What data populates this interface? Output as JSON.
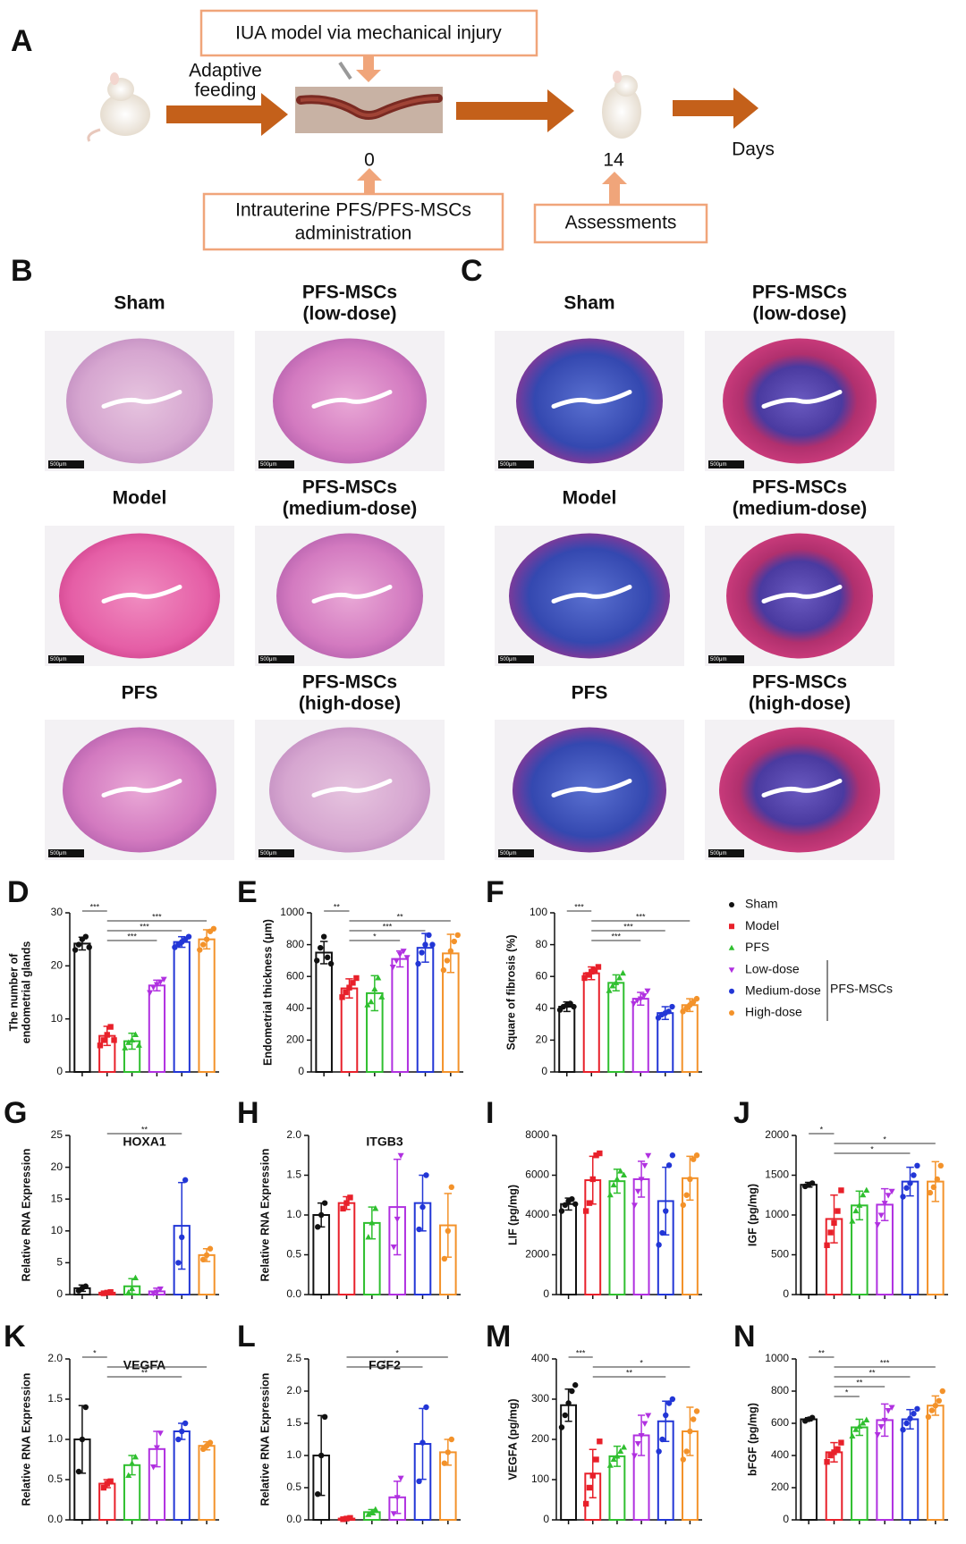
{
  "timeline": {
    "label": "A",
    "top_box": "IUA model via mechanical injury",
    "feeding": [
      "Adaptive",
      "feeding"
    ],
    "day0": "0",
    "day14": "14",
    "days": "Days",
    "admin_box": [
      "Intrauterine  PFS/PFS-MSCs",
      "administration"
    ],
    "assess_box": "Assessments"
  },
  "histology": {
    "scale_bar": "500μm",
    "panels": [
      {
        "label": "B",
        "images": [
          {
            "title": [
              "Sham"
            ]
          },
          {
            "title": [
              "PFS-MSCs",
              "(low-dose)"
            ]
          },
          {
            "title": [
              "Model"
            ]
          },
          {
            "title": [
              "PFS-MSCs",
              "(medium-dose)"
            ]
          },
          {
            "title": [
              "PFS"
            ]
          },
          {
            "title": [
              "PFS-MSCs",
              "(high-dose)"
            ]
          }
        ]
      },
      {
        "label": "C",
        "images": [
          {
            "title": [
              "Sham"
            ]
          },
          {
            "title": [
              "PFS-MSCs",
              "(low-dose)"
            ]
          },
          {
            "title": [
              "Model"
            ]
          },
          {
            "title": [
              "PFS-MSCs",
              "(medium-dose)"
            ]
          },
          {
            "title": [
              "PFS"
            ]
          },
          {
            "title": [
              "PFS-MSCs",
              "(high-dose)"
            ]
          }
        ]
      }
    ]
  },
  "legend": {
    "items": [
      {
        "name": "Sham",
        "color": "#111111",
        "marker": "circle"
      },
      {
        "name": "Model",
        "color": "#e8202a",
        "marker": "square"
      },
      {
        "name": "PFS",
        "color": "#2fbf2f",
        "marker": "triangle"
      },
      {
        "name": "Low-dose",
        "color": "#b030e0",
        "marker": "triangle-down"
      },
      {
        "name": "Medium-dose",
        "color": "#2236d6",
        "marker": "circle"
      },
      {
        "name": "High-dose",
        "color": "#f3922a",
        "marker": "circle"
      }
    ],
    "group_label": "PFS-MSCs"
  },
  "chart_data": [
    {
      "type": "bar",
      "panel": "D",
      "ylabel": [
        "The number of",
        "endometrial glands"
      ],
      "ylim": [
        0,
        30
      ],
      "yticks": [
        0,
        10,
        20,
        30
      ],
      "values": [
        24.2,
        6.8,
        5.8,
        16.3,
        24.5,
        25
      ],
      "errors": [
        1.2,
        1.8,
        1.5,
        1.0,
        1.0,
        1.8
      ],
      "points": [
        [
          23,
          24,
          25,
          25.5,
          23.5
        ],
        [
          5,
          6,
          7,
          8.5,
          6
        ],
        [
          4.5,
          5.5,
          6,
          7,
          5
        ],
        [
          15,
          16,
          16.5,
          17,
          17.5
        ],
        [
          23.5,
          24,
          24.5,
          25,
          25.5
        ],
        [
          23,
          24,
          25,
          26.5,
          27
        ]
      ],
      "annotations": [
        {
          "groups": [
            0,
            1
          ],
          "label": "***"
        },
        {
          "groups": [
            1,
            5
          ],
          "label": "***"
        },
        {
          "groups": [
            1,
            4
          ],
          "label": "***"
        },
        {
          "groups": [
            1,
            3
          ],
          "label": "***"
        }
      ]
    },
    {
      "type": "bar",
      "panel": "E",
      "ylabel": "Endometrial thickness (μm)",
      "ylim": [
        0,
        1000
      ],
      "yticks": [
        0,
        200,
        400,
        600,
        800,
        1000
      ],
      "values": [
        750,
        525,
        495,
        710,
        780,
        745
      ],
      "errors": [
        70,
        60,
        110,
        50,
        90,
        120
      ],
      "points": [
        [
          700,
          780,
          850,
          720,
          680
        ],
        [
          470,
          500,
          530,
          560,
          590
        ],
        [
          420,
          440,
          520,
          590,
          470
        ],
        [
          660,
          700,
          740,
          760,
          720
        ],
        [
          680,
          750,
          800,
          860,
          800
        ],
        [
          640,
          700,
          760,
          820,
          860
        ]
      ],
      "annotations": [
        {
          "groups": [
            0,
            1
          ],
          "label": "**"
        },
        {
          "groups": [
            1,
            5
          ],
          "label": "**"
        },
        {
          "groups": [
            1,
            4
          ],
          "label": "***"
        },
        {
          "groups": [
            1,
            3
          ],
          "label": "*"
        }
      ]
    },
    {
      "type": "bar",
      "panel": "F",
      "ylabel": "Square of fibrosis (%)",
      "ylim": [
        0,
        100
      ],
      "yticks": [
        0,
        20,
        40,
        60,
        80,
        100
      ],
      "values": [
        41,
        62,
        56,
        46,
        37,
        42
      ],
      "errors": [
        3,
        4,
        5,
        4,
        4,
        4
      ],
      "points": [
        [
          39,
          41,
          42,
          43,
          41
        ],
        [
          59,
          61,
          63,
          64,
          66
        ],
        [
          51,
          54,
          56,
          59,
          62
        ],
        [
          43,
          45,
          46,
          48,
          51
        ],
        [
          34,
          36,
          37,
          38,
          41
        ],
        [
          38,
          40,
          42,
          44,
          46
        ]
      ],
      "annotations": [
        {
          "groups": [
            0,
            1
          ],
          "label": "***"
        },
        {
          "groups": [
            1,
            5
          ],
          "label": "***"
        },
        {
          "groups": [
            1,
            4
          ],
          "label": "***"
        },
        {
          "groups": [
            1,
            3
          ],
          "label": "***"
        }
      ]
    },
    {
      "type": "bar",
      "panel": "G",
      "title": "HOXA1",
      "ylabel": "Relative RNA Expression",
      "ylim": [
        0,
        25
      ],
      "yticks": [
        0,
        5,
        10,
        15,
        20,
        25
      ],
      "values": [
        1.0,
        0.3,
        1.3,
        0.5,
        10.8,
        6.2
      ],
      "errors": [
        0.5,
        0.2,
        1.2,
        0.5,
        6.8,
        1.0
      ],
      "points": [
        [
          0.6,
          1.0,
          1.3
        ],
        [
          0.2,
          0.3,
          0.4
        ],
        [
          0.3,
          0.9,
          2.6
        ],
        [
          0.2,
          0.4,
          0.9
        ],
        [
          5,
          9,
          18
        ],
        [
          5.5,
          6.2,
          7.2
        ]
      ],
      "annotations": [
        {
          "groups": [
            1,
            4
          ],
          "label": "**"
        }
      ]
    },
    {
      "type": "bar",
      "panel": "H",
      "title": "ITGB3",
      "ylabel": "Relative RNA Expression",
      "ylim": [
        0,
        2
      ],
      "yticks": [
        {
          "value": 0,
          "label": "0.0"
        },
        0.5,
        {
          "value": 1,
          "label": "1.0"
        },
        1.5,
        {
          "value": 2,
          "label": "2.0"
        }
      ],
      "values": [
        1.0,
        1.15,
        0.9,
        1.1,
        1.15,
        0.87
      ],
      "errors": [
        0.15,
        0.08,
        0.2,
        0.6,
        0.35,
        0.4
      ],
      "points": [
        [
          0.85,
          1.0,
          1.15
        ],
        [
          1.08,
          1.15,
          1.22
        ],
        [
          0.72,
          0.9,
          1.08
        ],
        [
          0.6,
          0.95,
          1.75
        ],
        [
          0.82,
          1.1,
          1.5
        ],
        [
          0.45,
          0.8,
          1.35
        ]
      ],
      "annotations": []
    },
    {
      "type": "bar",
      "panel": "I",
      "ylabel": "LIF (pg/mg)",
      "ylim": [
        0,
        8000
      ],
      "yticks": [
        0,
        2000,
        4000,
        6000,
        8000
      ],
      "values": [
        4550,
        5750,
        5700,
        5800,
        4700,
        5850
      ],
      "errors": [
        300,
        1200,
        600,
        900,
        1700,
        1100
      ],
      "points": [
        [
          4200,
          4500,
          4700,
          4800,
          4550
        ],
        [
          4200,
          4600,
          5800,
          7000,
          7100
        ],
        [
          5000,
          5500,
          5800,
          6200,
          6000
        ],
        [
          4500,
          5200,
          5800,
          6500,
          7000
        ],
        [
          2500,
          3100,
          4200,
          6500,
          7000
        ],
        [
          4500,
          5000,
          5800,
          6800,
          7000
        ]
      ],
      "annotations": []
    },
    {
      "type": "bar",
      "panel": "J",
      "ylabel": "IGF (pg/mg)",
      "ylim": [
        0,
        2000
      ],
      "yticks": [
        0,
        500,
        1000,
        1500,
        2000
      ],
      "values": [
        1380,
        950,
        1120,
        1130,
        1420,
        1420
      ],
      "errors": [
        30,
        300,
        180,
        200,
        180,
        250
      ],
      "points": [
        [
          1360,
          1380,
          1400
        ],
        [
          620,
          780,
          900,
          1050,
          1310
        ],
        [
          920,
          1050,
          1120,
          1250,
          1310
        ],
        [
          880,
          1000,
          1150,
          1250,
          1300
        ],
        [
          1230,
          1340,
          1400,
          1500,
          1620
        ],
        [
          1280,
          1350,
          1450,
          1620
        ]
      ],
      "annotations": [
        {
          "groups": [
            0,
            1
          ],
          "label": "*"
        },
        {
          "groups": [
            1,
            5
          ],
          "label": "*"
        },
        {
          "groups": [
            1,
            4
          ],
          "label": "*"
        }
      ]
    },
    {
      "type": "bar",
      "panel": "K",
      "title": "VEGFA",
      "ylabel": "Relative RNA Expression",
      "ylim": [
        0,
        2
      ],
      "yticks": [
        {
          "value": 0,
          "label": "0.0"
        },
        0.5,
        {
          "value": 1,
          "label": "1.0"
        },
        1.5,
        {
          "value": 2,
          "label": "2.0"
        }
      ],
      "values": [
        1.0,
        0.45,
        0.68,
        0.88,
        1.1,
        0.92
      ],
      "errors": [
        0.42,
        0.05,
        0.12,
        0.22,
        0.1,
        0.05
      ],
      "points": [
        [
          0.6,
          1.0,
          1.4
        ],
        [
          0.4,
          0.45,
          0.48
        ],
        [
          0.55,
          0.7,
          0.78
        ],
        [
          0.66,
          0.9,
          1.08
        ],
        [
          1.0,
          1.1,
          1.2
        ],
        [
          0.88,
          0.92,
          0.96
        ]
      ],
      "annotations": [
        {
          "groups": [
            0,
            1
          ],
          "label": "*"
        },
        {
          "groups": [
            1,
            5
          ],
          "label": "*"
        },
        {
          "groups": [
            1,
            4
          ],
          "label": "**"
        }
      ]
    },
    {
      "type": "bar",
      "panel": "L",
      "title": "FGF2",
      "ylabel": "Relative RNA Expression",
      "ylim": [
        0,
        2.5
      ],
      "yticks": [
        {
          "value": 0,
          "label": "0.0"
        },
        0.5,
        {
          "value": 1,
          "label": "1.0"
        },
        1.5,
        {
          "value": 2,
          "label": "2.0"
        },
        2.5
      ],
      "values": [
        1.0,
        0.02,
        0.12,
        0.35,
        1.18,
        1.05
      ],
      "errors": [
        0.62,
        0.02,
        0.04,
        0.25,
        0.55,
        0.2
      ],
      "points": [
        [
          0.4,
          1.0,
          1.6
        ],
        [
          0.01,
          0.02,
          0.03
        ],
        [
          0.08,
          0.12,
          0.16
        ],
        [
          0.1,
          0.35,
          0.65
        ],
        [
          0.6,
          1.2,
          1.75
        ],
        [
          0.88,
          1.05,
          1.25
        ]
      ],
      "annotations": [
        {
          "groups": [
            1,
            5
          ],
          "label": "*"
        },
        {
          "groups": [
            1,
            4
          ],
          "label": "*"
        }
      ]
    },
    {
      "type": "bar",
      "panel": "M",
      "ylabel": "VEGFA (pg/mg)",
      "ylim": [
        0,
        400
      ],
      "yticks": [
        0,
        100,
        200,
        300,
        400
      ],
      "values": [
        285,
        115,
        158,
        210,
        245,
        220
      ],
      "errors": [
        40,
        60,
        25,
        50,
        50,
        60
      ],
      "points": [
        [
          230,
          260,
          290,
          320,
          335
        ],
        [
          40,
          80,
          110,
          150,
          195
        ],
        [
          135,
          150,
          158,
          170,
          180
        ],
        [
          160,
          190,
          210,
          240,
          260
        ],
        [
          170,
          200,
          260,
          290,
          300
        ],
        [
          150,
          170,
          220,
          250,
          270
        ]
      ],
      "annotations": [
        {
          "groups": [
            0,
            1
          ],
          "label": "***"
        },
        {
          "groups": [
            1,
            5
          ],
          "label": "*"
        },
        {
          "groups": [
            1,
            4
          ],
          "label": "**"
        }
      ]
    },
    {
      "type": "bar",
      "panel": "N",
      "ylabel": "bFGF (pg/mg)",
      "ylim": [
        0,
        1000
      ],
      "yticks": [
        0,
        200,
        400,
        600,
        800,
        1000
      ],
      "values": [
        625,
        420,
        575,
        620,
        625,
        710
      ],
      "errors": [
        10,
        60,
        50,
        100,
        60,
        60
      ],
      "points": [
        [
          615,
          625,
          635
        ],
        [
          360,
          400,
          420,
          440,
          480
        ],
        [
          520,
          560,
          580,
          600,
          620
        ],
        [
          530,
          580,
          620,
          680,
          700
        ],
        [
          560,
          600,
          630,
          660,
          690
        ],
        [
          640,
          680,
          710,
          740,
          800
        ]
      ],
      "annotations": [
        {
          "groups": [
            0,
            1
          ],
          "label": "**"
        },
        {
          "groups": [
            1,
            5
          ],
          "label": "***"
        },
        {
          "groups": [
            1,
            4
          ],
          "label": "**"
        },
        {
          "groups": [
            1,
            3
          ],
          "label": "**"
        },
        {
          "groups": [
            1,
            2
          ],
          "label": "*"
        }
      ]
    }
  ]
}
